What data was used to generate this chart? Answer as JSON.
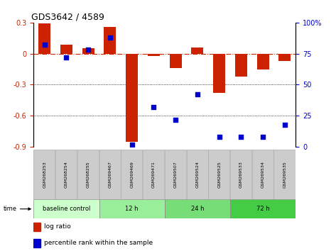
{
  "title": "GDS3642 / 4589",
  "samples": [
    "GSM268253",
    "GSM268254",
    "GSM268255",
    "GSM269467",
    "GSM269469",
    "GSM269471",
    "GSM269507",
    "GSM269524",
    "GSM269525",
    "GSM269533",
    "GSM269534",
    "GSM269535"
  ],
  "log_ratio": [
    0.29,
    0.09,
    0.05,
    0.26,
    -0.85,
    -0.02,
    -0.14,
    0.06,
    -0.38,
    -0.22,
    -0.15,
    -0.07
  ],
  "percentile_rank": [
    82,
    72,
    78,
    88,
    2,
    32,
    22,
    42,
    8,
    8,
    8,
    18
  ],
  "ylim_left": [
    -0.9,
    0.3
  ],
  "ylim_right": [
    0,
    100
  ],
  "bar_color": "#cc2200",
  "dot_color": "#0000cc",
  "background_color": "#ffffff",
  "grid_color": "#000000",
  "zero_line_color": "#cc2200",
  "groups": [
    {
      "label": "baseline control",
      "start": 0,
      "end": 3,
      "color": "#ccffcc"
    },
    {
      "label": "12 h",
      "start": 3,
      "end": 6,
      "color": "#99ee99"
    },
    {
      "label": "24 h",
      "start": 6,
      "end": 9,
      "color": "#77dd77"
    },
    {
      "label": "72 h",
      "start": 9,
      "end": 12,
      "color": "#44cc44"
    }
  ],
  "yticks_left": [
    -0.9,
    -0.6,
    -0.3,
    0.0,
    0.3
  ],
  "ytick_labels_left": [
    "-0.9",
    "-0.6",
    "-0.3",
    "0",
    "0.3"
  ],
  "yticks_right": [
    0,
    25,
    50,
    75,
    100
  ],
  "ytick_labels_right": [
    "0",
    "25",
    "50",
    "75",
    "100%"
  ],
  "bar_width": 0.55,
  "dot_size": 18,
  "n_samples": 12
}
